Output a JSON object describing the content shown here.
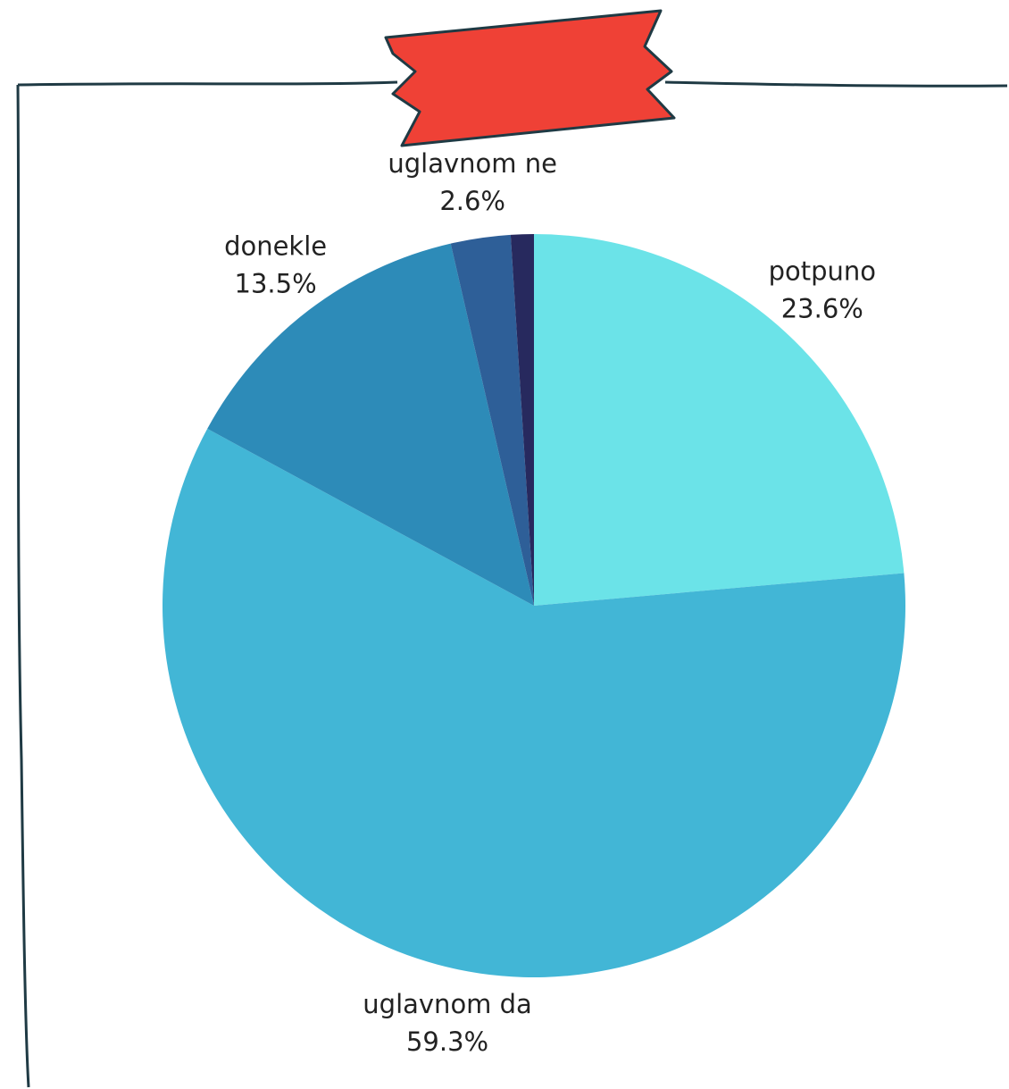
{
  "chart_data": {
    "type": "pie",
    "categories": [
      "potpuno",
      "uglavnom da",
      "donekle",
      "uglavnom ne",
      null
    ],
    "values": [
      23.6,
      59.3,
      13.5,
      2.6,
      1.0
    ],
    "value_labels": [
      "23.6%",
      "59.3%",
      "13.5%",
      "2.6%",
      null
    ],
    "colors": [
      "#6be3e8",
      "#42b6d6",
      "#2d8bb8",
      "#2e5f98",
      "#27295e"
    ]
  }
}
